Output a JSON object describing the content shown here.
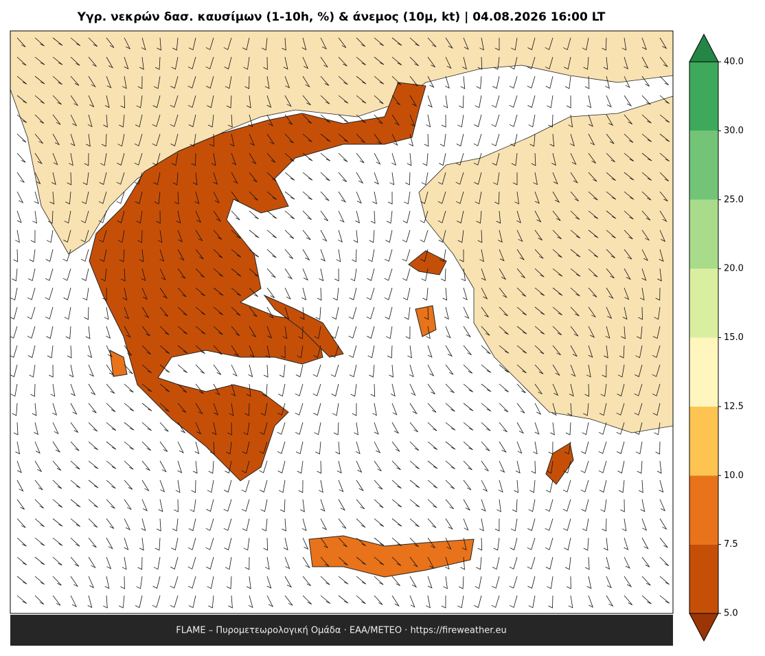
{
  "title": "Υγρ. νεκρών δασ. καυσίμων (1-10h, %) & άνεμος (10μ, kt)  |  04.08.2026 16:00 LT",
  "footer": "FLAME – Πυρομετεωρολογική Ομάδα · ΕΑΑ/METEO · https://fireweather.eu",
  "colorbar": {
    "ticks": [
      {
        "value": 5,
        "label": "5.0"
      },
      {
        "value": 7.5,
        "label": "7.5"
      },
      {
        "value": 10,
        "label": "10.0"
      },
      {
        "value": 12.5,
        "label": "12.5"
      },
      {
        "value": 15,
        "label": "15.0"
      },
      {
        "value": 20,
        "label": "20.0"
      },
      {
        "value": 25,
        "label": "25.0"
      },
      {
        "value": 30,
        "label": "30.0"
      },
      {
        "value": 40,
        "label": "40.0"
      }
    ],
    "colors": [
      "#c64f08",
      "#e8731a",
      "#fdc452",
      "#fff6bd",
      "#daeea0",
      "#a8dc8b",
      "#73c477",
      "#3ea95a"
    ],
    "under_color": "#9c3505",
    "over_color": "#238645"
  }
}
